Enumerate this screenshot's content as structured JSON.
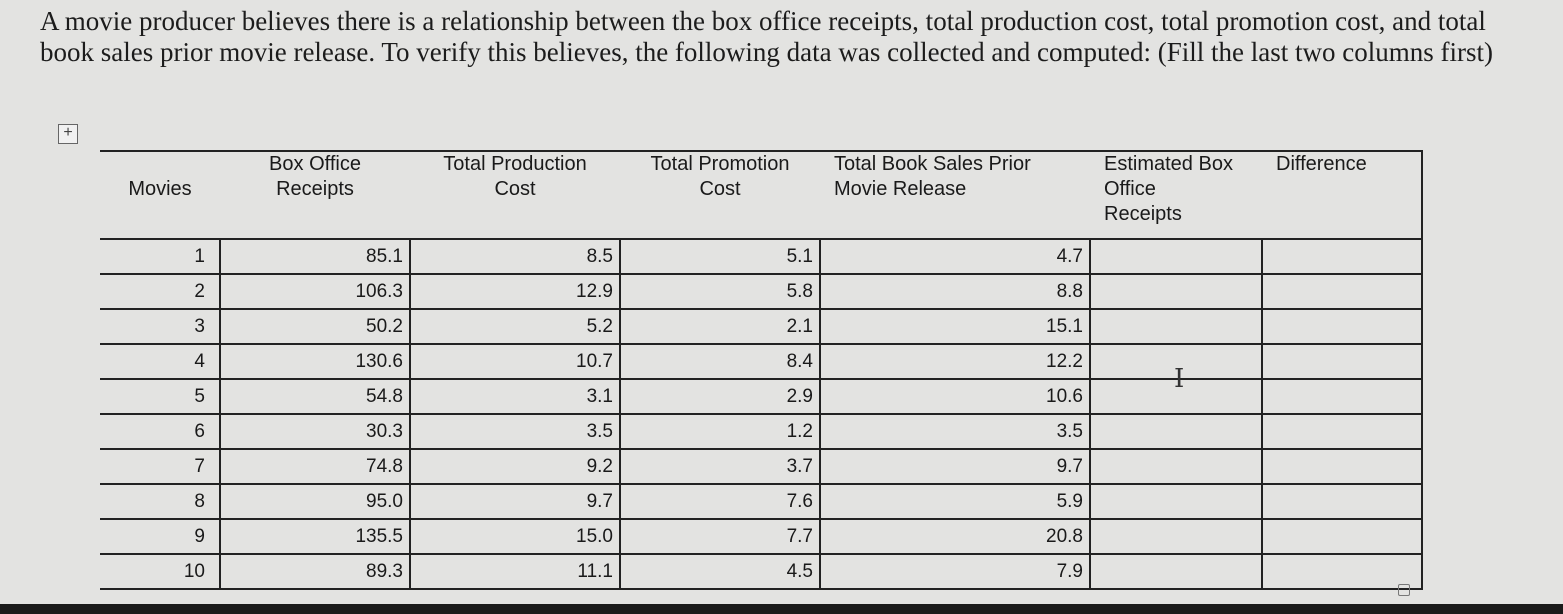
{
  "question": "A movie producer believes there is a relationship between the box office receipts, total production cost, total promotion cost, and total book sales prior movie release. To verify this believes, the following data was collected and computed: (Fill the last two columns first)",
  "move_handle_glyph": "+",
  "table": {
    "headers": {
      "movies": "Movies",
      "box_office": [
        "Box Office",
        "Receipts"
      ],
      "production": [
        "Total Production",
        "Cost"
      ],
      "promotion": [
        "Total Promotion",
        "Cost"
      ],
      "book_sales": [
        "Total Book Sales Prior",
        "Movie Release"
      ],
      "estimated": [
        "Estimated Box",
        "Office",
        "Receipts"
      ],
      "difference": "Difference"
    },
    "rows": [
      {
        "movie": "1",
        "box_office": "85.1",
        "production": "8.5",
        "promotion": "5.1",
        "book_sales": "4.7"
      },
      {
        "movie": "2",
        "box_office": "106.3",
        "production": "12.9",
        "promotion": "5.8",
        "book_sales": "8.8"
      },
      {
        "movie": "3",
        "box_office": "50.2",
        "production": "5.2",
        "promotion": "2.1",
        "book_sales": "15.1"
      },
      {
        "movie": "4",
        "box_office": "130.6",
        "production": "10.7",
        "promotion": "8.4",
        "book_sales": "12.2"
      },
      {
        "movie": "5",
        "box_office": "54.8",
        "production": "3.1",
        "promotion": "2.9",
        "book_sales": "10.6"
      },
      {
        "movie": "6",
        "box_office": "30.3",
        "production": "3.5",
        "promotion": "1.2",
        "book_sales": "3.5"
      },
      {
        "movie": "7",
        "box_office": "74.8",
        "production": "9.2",
        "promotion": "3.7",
        "book_sales": "9.7"
      },
      {
        "movie": "8",
        "box_office": "95.0",
        "production": "9.7",
        "promotion": "7.6",
        "book_sales": "5.9"
      },
      {
        "movie": "9",
        "box_office": "135.5",
        "production": "15.0",
        "promotion": "7.7",
        "book_sales": "20.8"
      },
      {
        "movie": "10",
        "box_office": "89.3",
        "production": "11.1",
        "promotion": "4.5",
        "book_sales": "7.9"
      }
    ]
  },
  "cursor_glyph": "I"
}
